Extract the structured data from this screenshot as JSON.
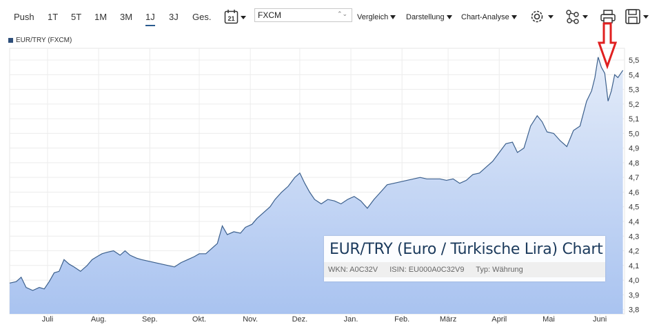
{
  "toolbar": {
    "ranges": [
      {
        "label": "Push"
      },
      {
        "label": "1T"
      },
      {
        "label": "5T"
      },
      {
        "label": "1M"
      },
      {
        "label": "3M"
      },
      {
        "label": "1J"
      },
      {
        "label": "3J"
      },
      {
        "label": "Ges."
      }
    ],
    "active_range": "1J",
    "calendar_day": "21",
    "exchange": "FXCM",
    "menus": [
      {
        "label": "Vergleich"
      },
      {
        "label": "Darstellung"
      },
      {
        "label": "Chart-Analyse"
      }
    ],
    "icons": [
      "gear-icon",
      "network-icon",
      "print-icon",
      "save-icon"
    ]
  },
  "infobox": {
    "title": "EUR/TRY (Euro / Türkische Lira) Chart",
    "wkn": "WKN: A0C32V",
    "isin": "ISIN: EU000A0C32V9",
    "typ": "Typ: Währung"
  },
  "colors": {
    "line": "#3b5f8c",
    "fill_top": "#e4ecf9",
    "fill_bottom": "#a9c3f0",
    "arrow": "#e02020",
    "legend": "#2e4f7a"
  },
  "chart_data": {
    "type": "area",
    "legend": "EUR/TRY (FXCM)",
    "x_ticks": [
      "Juli",
      "Aug.",
      "Sep.",
      "Okt.",
      "Nov.",
      "Dez.",
      "Jan.",
      "Feb.",
      "März",
      "April",
      "Mai",
      "Juni"
    ],
    "y_ticks": [
      "3,8",
      "3,9",
      "4,0",
      "4,1",
      "4,2",
      "4,3",
      "4,4",
      "4,5",
      "4,6",
      "4,7",
      "4,8",
      "4,9",
      "5,0",
      "5,1",
      "5,2",
      "5,3",
      "5,4",
      "5,5"
    ],
    "ylim": [
      3.77,
      5.58
    ],
    "grid": true,
    "annotation": "red down arrow above the latest peak",
    "series": [
      {
        "points": [
          [
            "2016-06-08",
            3.98
          ],
          [
            "2016-06-12",
            3.99
          ],
          [
            "2016-06-15",
            4.02
          ],
          [
            "2016-06-18",
            3.95
          ],
          [
            "2016-06-22",
            3.93
          ],
          [
            "2016-06-26",
            3.95
          ],
          [
            "2016-06-29",
            3.94
          ],
          [
            "2016-07-02",
            3.99
          ],
          [
            "2016-07-05",
            4.05
          ],
          [
            "2016-07-08",
            4.06
          ],
          [
            "2016-07-11",
            4.14
          ],
          [
            "2016-07-14",
            4.11
          ],
          [
            "2016-07-17",
            4.09
          ],
          [
            "2016-07-21",
            4.06
          ],
          [
            "2016-07-25",
            4.1
          ],
          [
            "2016-07-28",
            4.14
          ],
          [
            "2016-07-31",
            4.16
          ],
          [
            "2016-08-03",
            4.18
          ],
          [
            "2016-08-06",
            4.19
          ],
          [
            "2016-08-10",
            4.2
          ],
          [
            "2016-08-14",
            4.17
          ],
          [
            "2016-08-17",
            4.2
          ],
          [
            "2016-08-20",
            4.17
          ],
          [
            "2016-08-24",
            4.15
          ],
          [
            "2016-08-27",
            4.14
          ],
          [
            "2016-08-31",
            4.13
          ],
          [
            "2016-09-04",
            4.12
          ],
          [
            "2016-09-08",
            4.11
          ],
          [
            "2016-09-12",
            4.1
          ],
          [
            "2016-09-16",
            4.09
          ],
          [
            "2016-09-20",
            4.12
          ],
          [
            "2016-09-24",
            4.14
          ],
          [
            "2016-09-28",
            4.16
          ],
          [
            "2016-10-01",
            4.18
          ],
          [
            "2016-10-05",
            4.18
          ],
          [
            "2016-10-09",
            4.22
          ],
          [
            "2016-10-12",
            4.25
          ],
          [
            "2016-10-15",
            4.37
          ],
          [
            "2016-10-18",
            4.31
          ],
          [
            "2016-10-22",
            4.33
          ],
          [
            "2016-10-26",
            4.32
          ],
          [
            "2016-10-29",
            4.36
          ],
          [
            "2016-11-02",
            4.38
          ],
          [
            "2016-11-05",
            4.42
          ],
          [
            "2016-11-09",
            4.46
          ],
          [
            "2016-11-13",
            4.5
          ],
          [
            "2016-11-16",
            4.55
          ],
          [
            "2016-11-20",
            4.6
          ],
          [
            "2016-11-24",
            4.64
          ],
          [
            "2016-11-28",
            4.7
          ],
          [
            "2016-12-01",
            4.73
          ],
          [
            "2016-12-04",
            4.66
          ],
          [
            "2016-12-07",
            4.6
          ],
          [
            "2016-12-10",
            4.55
          ],
          [
            "2016-12-14",
            4.52
          ],
          [
            "2016-12-18",
            4.55
          ],
          [
            "2016-12-22",
            4.54
          ],
          [
            "2016-12-26",
            4.52
          ],
          [
            "2016-12-30",
            4.55
          ],
          [
            "2017-01-03",
            4.57
          ],
          [
            "2017-01-07",
            4.54
          ],
          [
            "2017-01-11",
            4.49
          ],
          [
            "2017-01-15",
            4.55
          ],
          [
            "2017-01-19",
            4.6
          ],
          [
            "2017-01-23",
            4.65
          ],
          [
            "2017-01-27",
            4.66
          ],
          [
            "2017-01-31",
            4.67
          ],
          [
            "2017-02-04",
            4.68
          ],
          [
            "2017-02-08",
            4.69
          ],
          [
            "2017-02-12",
            4.7
          ],
          [
            "2017-02-16",
            4.69
          ],
          [
            "2017-02-20",
            4.69
          ],
          [
            "2017-02-24",
            4.69
          ],
          [
            "2017-02-28",
            4.68
          ],
          [
            "2017-03-04",
            4.69
          ],
          [
            "2017-03-08",
            4.66
          ],
          [
            "2017-03-12",
            4.68
          ],
          [
            "2017-03-16",
            4.72
          ],
          [
            "2017-03-20",
            4.73
          ],
          [
            "2017-03-24",
            4.77
          ],
          [
            "2017-03-28",
            4.81
          ],
          [
            "2017-04-01",
            4.87
          ],
          [
            "2017-04-05",
            4.93
          ],
          [
            "2017-04-09",
            4.94
          ],
          [
            "2017-04-12",
            4.87
          ],
          [
            "2017-04-16",
            4.9
          ],
          [
            "2017-04-20",
            5.05
          ],
          [
            "2017-04-24",
            5.12
          ],
          [
            "2017-04-27",
            5.08
          ],
          [
            "2017-04-30",
            5.01
          ],
          [
            "2017-05-04",
            5.0
          ],
          [
            "2017-05-08",
            4.95
          ],
          [
            "2017-05-12",
            4.91
          ],
          [
            "2017-05-16",
            5.02
          ],
          [
            "2017-05-20",
            5.05
          ],
          [
            "2017-05-24",
            5.22
          ],
          [
            "2017-05-27",
            5.29
          ],
          [
            "2017-05-29",
            5.38
          ],
          [
            "2017-05-31",
            5.52
          ],
          [
            "2017-06-02",
            5.45
          ],
          [
            "2017-06-04",
            5.41
          ],
          [
            "2017-06-06",
            5.22
          ],
          [
            "2017-06-08",
            5.29
          ],
          [
            "2017-06-10",
            5.4
          ],
          [
            "2017-06-12",
            5.38
          ],
          [
            "2017-06-15",
            5.43
          ]
        ]
      }
    ]
  }
}
